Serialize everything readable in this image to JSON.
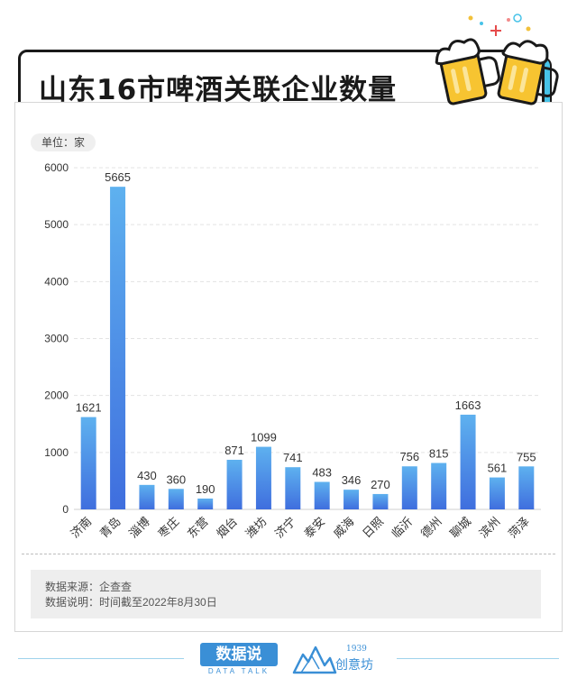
{
  "header": {
    "title": "山东16市啤酒关联企业数量"
  },
  "unit_label": "单位：家",
  "source": {
    "line1": "数据来源：企查查",
    "line2": "数据说明：时间截至2022年8月30日"
  },
  "branding": {
    "logo_main": "数据说",
    "logo_sub": "DATA TALK",
    "partner_year": "1939",
    "partner_name": "创意坊"
  },
  "colors": {
    "bar_top": "#5eb1ef",
    "bar_bottom": "#3f6ede",
    "title_accent": "#47c3e8"
  },
  "chart_data": {
    "type": "bar",
    "title": "山东16市啤酒关联企业数量",
    "xlabel": "",
    "ylabel": "单位：家",
    "ylim": [
      0,
      6000
    ],
    "yticks": [
      0,
      1000,
      2000,
      3000,
      4000,
      5000,
      6000
    ],
    "grid": true,
    "legend": "none",
    "categories": [
      "济南",
      "青岛",
      "淄博",
      "枣庄",
      "东营",
      "烟台",
      "潍坊",
      "济宁",
      "泰安",
      "威海",
      "日照",
      "临沂",
      "德州",
      "聊城",
      "滨州",
      "菏泽"
    ],
    "values": [
      1621,
      5665,
      430,
      360,
      190,
      871,
      1099,
      741,
      483,
      346,
      270,
      756,
      815,
      1663,
      561,
      755
    ]
  }
}
